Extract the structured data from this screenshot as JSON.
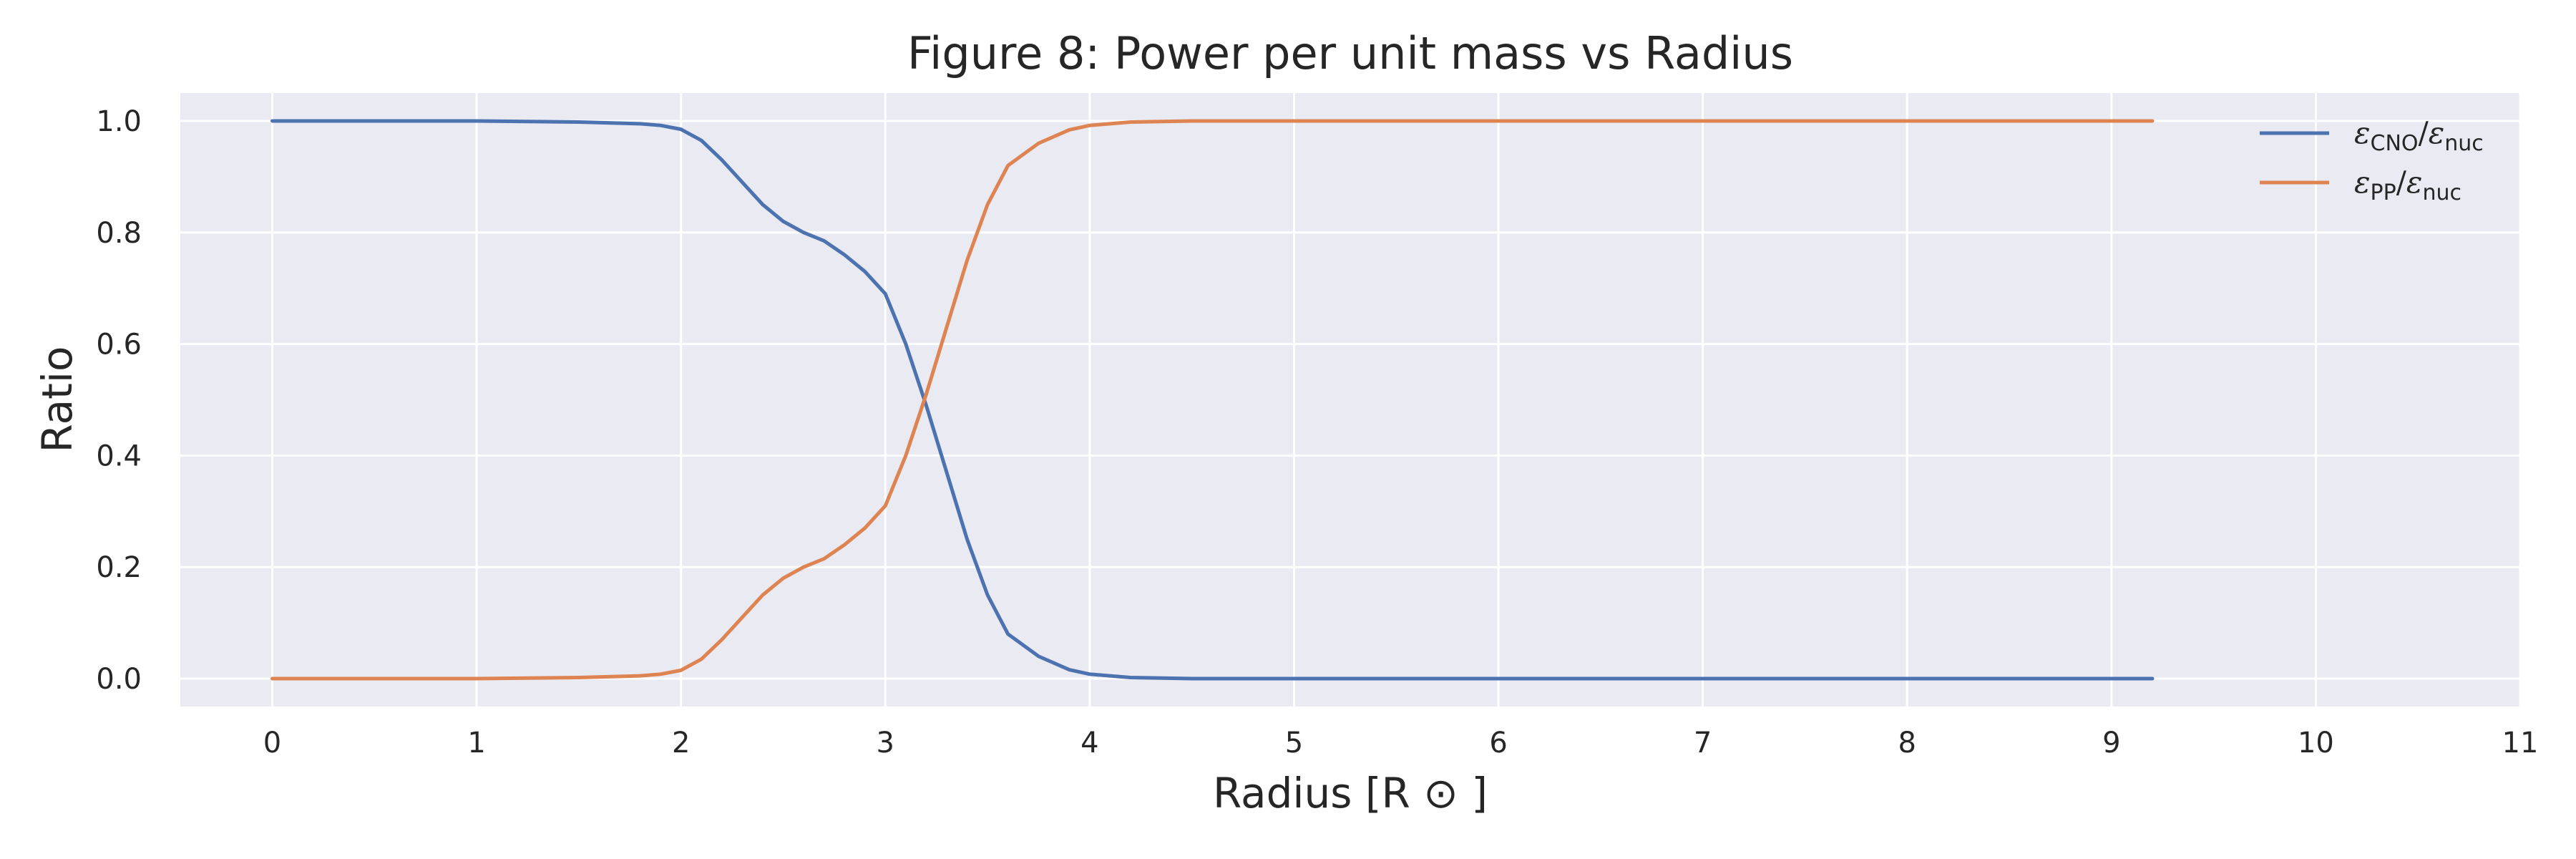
{
  "chart_data": {
    "type": "line",
    "title": "Figure 8: Power per unit mass vs Radius",
    "xlabel": "Radius [R ⊙ ]",
    "ylabel": "Ratio",
    "xlim": [
      -0.45,
      11.0
    ],
    "ylim": [
      -0.05,
      1.05
    ],
    "xticks": [
      "0",
      "1",
      "2",
      "3",
      "4",
      "5",
      "6",
      "7",
      "8",
      "9",
      "10",
      "11"
    ],
    "yticks": [
      "0.0",
      "0.2",
      "0.4",
      "0.6",
      "0.8",
      "1.0"
    ],
    "grid": true,
    "legend_position": "top-right",
    "background_color": "#eaeaf2",
    "grid_color": "#ffffff",
    "series": [
      {
        "name": "εCNO/εnuc",
        "color": "#4c72b0",
        "x": [
          0,
          0.5,
          1.0,
          1.5,
          1.8,
          1.9,
          2.0,
          2.1,
          2.2,
          2.3,
          2.4,
          2.5,
          2.6,
          2.7,
          2.8,
          2.9,
          3.0,
          3.1,
          3.2,
          3.3,
          3.4,
          3.5,
          3.6,
          3.75,
          3.9,
          4.0,
          4.2,
          4.5,
          5.0,
          6.0,
          7.0,
          8.0,
          9.2
        ],
        "y": [
          1.0,
          1.0,
          1.0,
          0.998,
          0.995,
          0.992,
          0.985,
          0.965,
          0.93,
          0.89,
          0.85,
          0.82,
          0.8,
          0.785,
          0.76,
          0.73,
          0.69,
          0.6,
          0.49,
          0.37,
          0.25,
          0.15,
          0.08,
          0.04,
          0.016,
          0.008,
          0.002,
          0.0,
          0.0,
          0.0,
          0.0,
          0.0,
          0.0
        ]
      },
      {
        "name": "εPP/εnuc",
        "color": "#dd8452",
        "x": [
          0,
          0.5,
          1.0,
          1.5,
          1.8,
          1.9,
          2.0,
          2.1,
          2.2,
          2.3,
          2.4,
          2.5,
          2.6,
          2.7,
          2.8,
          2.9,
          3.0,
          3.1,
          3.2,
          3.3,
          3.4,
          3.5,
          3.6,
          3.75,
          3.9,
          4.0,
          4.2,
          4.5,
          5.0,
          6.0,
          7.0,
          8.0,
          9.2
        ],
        "y": [
          0.0,
          0.0,
          0.0,
          0.002,
          0.005,
          0.008,
          0.015,
          0.035,
          0.07,
          0.11,
          0.15,
          0.18,
          0.2,
          0.215,
          0.24,
          0.27,
          0.31,
          0.4,
          0.51,
          0.63,
          0.75,
          0.85,
          0.92,
          0.96,
          0.984,
          0.992,
          0.998,
          1.0,
          1.0,
          1.0,
          1.0,
          1.0,
          1.0
        ]
      }
    ]
  },
  "legend": {
    "items": [
      {
        "symbol": "ε",
        "sub1": "CNO",
        "slash": "/",
        "symbol2": "ε",
        "sub2": "nuc"
      },
      {
        "symbol": "ε",
        "sub1": "PP",
        "slash": "/",
        "symbol2": "ε",
        "sub2": "nuc"
      }
    ]
  }
}
